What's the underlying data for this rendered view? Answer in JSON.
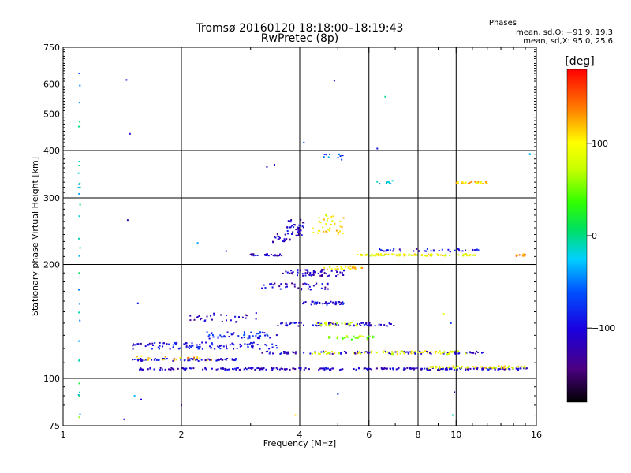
{
  "chart_data": {
    "type": "scatter",
    "title": "Tromsø 20160120 18:18:00–18:19:43",
    "subtitle": "RwPretec (8p)",
    "phases_header": "Phases",
    "phases_line1": "mean, sd,O: −91.9, 19.3",
    "phases_line2": "mean, sd,X:  95.0, 25.6",
    "xlabel": "Frequency [MHz]",
    "ylabel": "Stationary phase Virtual Height [km]",
    "xscale": "log",
    "yscale": "log",
    "xlim": [
      1,
      16
    ],
    "ylim": [
      75,
      750
    ],
    "x_ticks": [
      {
        "v": 1,
        "label": "1"
      },
      {
        "v": 2,
        "label": "2"
      },
      {
        "v": 4,
        "label": "4"
      },
      {
        "v": 6,
        "label": "6"
      },
      {
        "v": 8,
        "label": "8"
      },
      {
        "v": 10,
        "label": "10"
      },
      {
        "v": 16,
        "label": "16"
      }
    ],
    "y_ticks": [
      {
        "v": 75,
        "label": "75"
      },
      {
        "v": 100,
        "label": "100"
      },
      {
        "v": 200,
        "label": "200"
      },
      {
        "v": 300,
        "label": "300"
      },
      {
        "v": 400,
        "label": "400"
      },
      {
        "v": 500,
        "label": "500"
      },
      {
        "v": 600,
        "label": "600"
      },
      {
        "v": 750,
        "label": "750"
      }
    ],
    "x_grid": [
      2,
      4,
      6,
      8,
      10
    ],
    "y_grid": [
      100,
      200,
      300,
      400,
      500,
      600
    ],
    "grid": true,
    "colorbar": {
      "label": "[deg]",
      "range": [
        -180,
        180
      ],
      "ticks": [
        {
          "v": 100,
          "label": "100"
        },
        {
          "v": 0,
          "label": "0"
        },
        {
          "v": -100,
          "label": "−100"
        }
      ]
    },
    "traces": [
      {
        "x": [
          1.55,
          1.8,
          2.0,
          2.3,
          2.6,
          2.9,
          3.3,
          3.7,
          4.1,
          4.5,
          5.0,
          5.5,
          6.0,
          6.5,
          7.0,
          7.7,
          8.5,
          9.5,
          10.5,
          11.5,
          12.5,
          13.5,
          14.5,
          15.2
        ],
        "y": 106,
        "phase": -110,
        "n": 260,
        "spread": 0.006
      },
      {
        "x": [
          8.5,
          9.5,
          10.5,
          11.5,
          12.5,
          13.5,
          14.5,
          15.2
        ],
        "y": 107,
        "phase": 95,
        "n": 60,
        "spread": 0.008
      },
      {
        "x": [
          1.5,
          1.7,
          1.9,
          2.1,
          2.3,
          2.5,
          2.7,
          2.85
        ],
        "y": 112,
        "phase": -100,
        "n": 70,
        "spread": 0.008
      },
      {
        "x": [
          1.5,
          1.7,
          1.9,
          2.1,
          2.3,
          2.5,
          2.7,
          2.9,
          3.1,
          3.3,
          3.5
        ],
        "y": 122,
        "phase": -95,
        "n": 110,
        "spread": 0.02
      },
      {
        "x": [
          3.1,
          3.5,
          3.9,
          4.3,
          4.8,
          5.3,
          5.9,
          6.5,
          7.2,
          8.0,
          8.9,
          9.8,
          10.8,
          11.8
        ],
        "y": 117,
        "phase": -110,
        "n": 90,
        "spread": 0.008
      },
      {
        "x": [
          4.3,
          4.8,
          5.3,
          5.9,
          6.5,
          7.2,
          8.0,
          8.9,
          9.8,
          10.8
        ],
        "y": 117,
        "phase": 90,
        "n": 70,
        "spread": 0.01
      },
      {
        "x": [
          2.3,
          2.6,
          2.9,
          3.2,
          3.5
        ],
        "y": 130,
        "phase": -85,
        "n": 50,
        "spread": 0.02
      },
      {
        "x": [
          3.5,
          3.8,
          4.1,
          4.4,
          4.8,
          5.2,
          5.6,
          6.0,
          6.5,
          7.0
        ],
        "y": 139,
        "phase": -105,
        "n": 70,
        "spread": 0.01
      },
      {
        "x": [
          4.4,
          4.8,
          5.2,
          5.6
        ],
        "y": 139,
        "phase": 80,
        "n": 25,
        "spread": 0.012
      },
      {
        "x": [
          4.0,
          4.4,
          4.8,
          5.2
        ],
        "y": 158,
        "phase": -100,
        "n": 40,
        "spread": 0.01
      },
      {
        "x": [
          4.6,
          5.0,
          5.4,
          5.8,
          6.2
        ],
        "y": 128,
        "phase": 60,
        "n": 30,
        "spread": 0.012
      },
      {
        "x": [
          3.2,
          3.5,
          3.8,
          4.1,
          4.4,
          4.8
        ],
        "y": 175,
        "phase": -110,
        "n": 40,
        "spread": 0.02
      },
      {
        "x": [
          3.6,
          3.8,
          4.0,
          4.2,
          4.4,
          4.6,
          4.8,
          5.0,
          5.2
        ],
        "y": 190,
        "phase": -115,
        "n": 60,
        "spread": 0.02
      },
      {
        "x": [
          4.6,
          4.9,
          5.2,
          5.5,
          5.8
        ],
        "y": 196,
        "phase": 110,
        "n": 30,
        "spread": 0.012
      },
      {
        "x": [
          3.0,
          3.2,
          3.4,
          3.6
        ],
        "y": 212,
        "phase": -110,
        "n": 30,
        "spread": 0.006
      },
      {
        "x": [
          5.6,
          6.0,
          6.5,
          7.0,
          7.6,
          8.2,
          9.0,
          9.8,
          10.6,
          11.5
        ],
        "y": 212,
        "phase": 90,
        "n": 90,
        "spread": 0.006
      },
      {
        "x": [
          6.0,
          6.6,
          7.2,
          7.9,
          8.7,
          9.6,
          10.5,
          11.5
        ],
        "y": 218,
        "phase": -100,
        "n": 40,
        "spread": 0.008
      },
      {
        "x": [
          3.7,
          3.8,
          3.9,
          4.0,
          4.1
        ],
        "y": 250,
        "phase": -110,
        "n": 40,
        "spread": 0.05
      },
      {
        "x": [
          4.3,
          4.6,
          4.9,
          5.2
        ],
        "y": 255,
        "phase": 100,
        "n": 35,
        "spread": 0.06
      },
      {
        "x": [
          3.4,
          3.6,
          3.8
        ],
        "y": 235,
        "phase": -115,
        "n": 20,
        "spread": 0.03
      },
      {
        "x": [
          1.5,
          1.65,
          1.85,
          2.05,
          2.25,
          2.45
        ],
        "y": 113,
        "phase": 120,
        "n": 25,
        "spread": 0.015
      },
      {
        "x": [
          10.0,
          10.5,
          11.0,
          11.5,
          12.0
        ],
        "y": 329,
        "phase": 110,
        "n": 30,
        "spread": 0.006
      },
      {
        "x": [
          6.2,
          6.6,
          7.0
        ],
        "y": 330,
        "phase": -30,
        "n": 10,
        "spread": 0.01
      },
      {
        "x": [
          1.1,
          1.1,
          1.1,
          1.1,
          1.1,
          1.1
        ],
        "y": 230,
        "phase": -20,
        "n": 30,
        "spread": 0.55
      },
      {
        "x": [
          14.0,
          14.5,
          15.0
        ],
        "y": 212,
        "phase": 140,
        "n": 12,
        "spread": 0.006
      },
      {
        "x": [
          2.1,
          2.2,
          2.3,
          2.5,
          2.7,
          2.9,
          3.1
        ],
        "y": 145,
        "phase": -120,
        "n": 30,
        "spread": 0.03
      },
      {
        "x": [
          4.6,
          4.8,
          5.0,
          5.2
        ],
        "y": 385,
        "phase": -60,
        "n": 12,
        "spread": 0.02
      }
    ],
    "scatter_points": [
      {
        "x": 1.1,
        "y": 640,
        "phase": -60
      },
      {
        "x": 1.45,
        "y": 615,
        "phase": -100
      },
      {
        "x": 4.9,
        "y": 612,
        "phase": -110
      },
      {
        "x": 6.6,
        "y": 555,
        "phase": 0
      },
      {
        "x": 1.48,
        "y": 443,
        "phase": -110
      },
      {
        "x": 3.3,
        "y": 362,
        "phase": -120
      },
      {
        "x": 3.45,
        "y": 367,
        "phase": -110
      },
      {
        "x": 1.46,
        "y": 262,
        "phase": -120
      },
      {
        "x": 2.2,
        "y": 228,
        "phase": -40
      },
      {
        "x": 2.6,
        "y": 217,
        "phase": -110
      },
      {
        "x": 1.55,
        "y": 158,
        "phase": -90
      },
      {
        "x": 1.52,
        "y": 90,
        "phase": -30
      },
      {
        "x": 1.58,
        "y": 88,
        "phase": -100
      },
      {
        "x": 2.0,
        "y": 85,
        "phase": -140
      },
      {
        "x": 1.43,
        "y": 78,
        "phase": -100
      },
      {
        "x": 5.0,
        "y": 91,
        "phase": -80
      },
      {
        "x": 9.9,
        "y": 92,
        "phase": -120
      },
      {
        "x": 9.8,
        "y": 80,
        "phase": -10
      },
      {
        "x": 15.4,
        "y": 392,
        "phase": -30
      },
      {
        "x": 6.3,
        "y": 405,
        "phase": -90
      },
      {
        "x": 4.1,
        "y": 420,
        "phase": -60
      },
      {
        "x": 1.1,
        "y": 97,
        "phase": 20
      },
      {
        "x": 1.1,
        "y": 79,
        "phase": 60
      },
      {
        "x": 9.3,
        "y": 148,
        "phase": 90
      },
      {
        "x": 9.7,
        "y": 140,
        "phase": -70
      },
      {
        "x": 3.9,
        "y": 80,
        "phase": 110
      }
    ]
  }
}
